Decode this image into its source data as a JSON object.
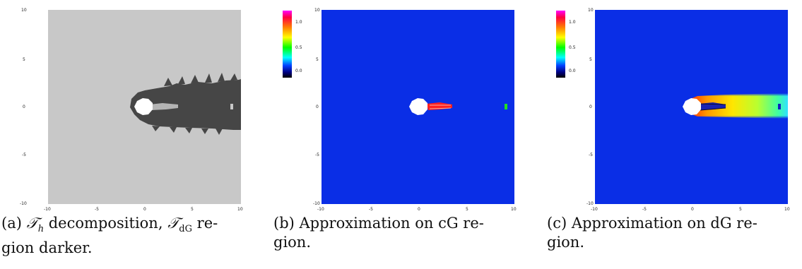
{
  "figures": [
    {
      "id": "a",
      "caption_prefix": "(a)",
      "caption_math_1": "𝒯",
      "caption_math_1_sub": "h",
      "caption_text_1": " decomposition, ",
      "caption_math_2": "𝒯",
      "caption_math_2_sub": "dG",
      "caption_text_2": " re-",
      "caption_line_2": "gion darker.",
      "x_ticks": [
        "-10",
        "-5",
        "0",
        "5",
        "10"
      ],
      "y_ticks": [
        "10",
        "5",
        "0",
        "-5",
        "-10"
      ]
    },
    {
      "id": "b",
      "caption_line_1": "(b) Approximation on cG re-",
      "caption_line_2": "gion.",
      "x_ticks": [
        "-10",
        "-5",
        "0",
        "5",
        "10"
      ],
      "y_ticks": [
        "10",
        "5",
        "0",
        "-5",
        "-10"
      ],
      "colorbar_ticks": [
        "1.0",
        "0.5",
        "0.0"
      ]
    },
    {
      "id": "c",
      "caption_line_1": "(c) Approximation on dG re-",
      "caption_line_2": "gion.",
      "x_ticks": [
        "-10",
        "-5",
        "0",
        "5",
        "10"
      ],
      "y_ticks": [
        "10",
        "5",
        "0",
        "-5",
        "-10"
      ],
      "colorbar_ticks": [
        "1.0",
        "0.5",
        "0.0"
      ]
    }
  ],
  "colors": {
    "background_light": "#c8c8c8",
    "region_dark": "#464646",
    "field_blue": "#0a2ee6",
    "obstacle": "#ffffff"
  }
}
